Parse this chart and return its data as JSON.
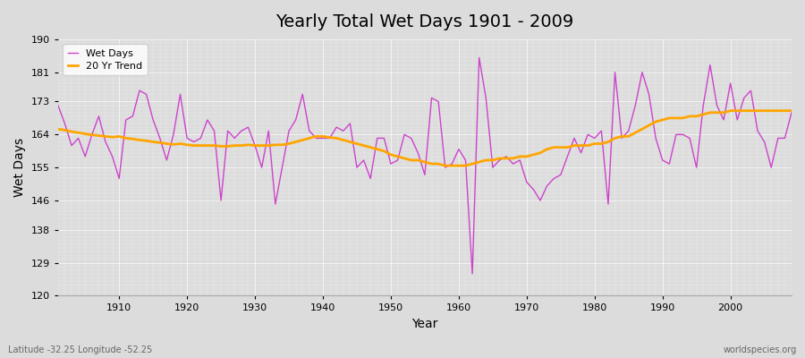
{
  "title": "Yearly Total Wet Days 1901 - 2009",
  "xlabel": "Year",
  "ylabel": "Wet Days",
  "subtitle": "Latitude -32.25 Longitude -52.25",
  "watermark": "worldspecies.org",
  "ylim": [
    120,
    190
  ],
  "xlim": [
    1901,
    2009
  ],
  "yticks": [
    120,
    129,
    138,
    146,
    155,
    164,
    173,
    181,
    190
  ],
  "xticks": [
    1910,
    1920,
    1930,
    1940,
    1950,
    1960,
    1970,
    1980,
    1990,
    2000
  ],
  "bg_color": "#dcdcdc",
  "plot_bg_color": "#dcdcdc",
  "wet_days_color": "#cc44cc",
  "trend_color": "#FFA500",
  "legend_wet": "Wet Days",
  "legend_trend": "20 Yr Trend",
  "years": [
    1901,
    1902,
    1903,
    1904,
    1905,
    1906,
    1907,
    1908,
    1909,
    1910,
    1911,
    1912,
    1913,
    1914,
    1915,
    1916,
    1917,
    1918,
    1919,
    1920,
    1921,
    1922,
    1923,
    1924,
    1925,
    1926,
    1927,
    1928,
    1929,
    1930,
    1931,
    1932,
    1933,
    1934,
    1935,
    1936,
    1937,
    1938,
    1939,
    1940,
    1941,
    1942,
    1943,
    1944,
    1945,
    1946,
    1947,
    1948,
    1949,
    1950,
    1951,
    1952,
    1953,
    1954,
    1955,
    1956,
    1957,
    1958,
    1959,
    1960,
    1961,
    1962,
    1963,
    1964,
    1965,
    1966,
    1967,
    1968,
    1969,
    1970,
    1971,
    1972,
    1973,
    1974,
    1975,
    1976,
    1977,
    1978,
    1979,
    1980,
    1981,
    1982,
    1983,
    1984,
    1985,
    1986,
    1987,
    1988,
    1989,
    1990,
    1991,
    1992,
    1993,
    1994,
    1995,
    1996,
    1997,
    1998,
    1999,
    2000,
    2001,
    2002,
    2003,
    2004,
    2005,
    2006,
    2007,
    2008,
    2009
  ],
  "wet_days": [
    172,
    167,
    161,
    163,
    158,
    164,
    169,
    162,
    158,
    152,
    168,
    169,
    176,
    175,
    168,
    163,
    157,
    164,
    175,
    163,
    162,
    163,
    168,
    165,
    146,
    165,
    163,
    165,
    166,
    161,
    155,
    165,
    145,
    155,
    165,
    168,
    175,
    165,
    163,
    163,
    163,
    166,
    165,
    167,
    155,
    157,
    152,
    163,
    163,
    156,
    157,
    164,
    163,
    159,
    153,
    174,
    173,
    155,
    156,
    160,
    157,
    126,
    185,
    174,
    155,
    157,
    158,
    156,
    157,
    151,
    149,
    146,
    150,
    152,
    153,
    158,
    163,
    159,
    164,
    163,
    165,
    145,
    181,
    163,
    165,
    172,
    181,
    175,
    163,
    157,
    156,
    164,
    164,
    163,
    155,
    172,
    183,
    172,
    168,
    178,
    168,
    174,
    176,
    165,
    162,
    155,
    163,
    163,
    170
  ],
  "trend": [
    165.5,
    165.2,
    164.8,
    164.5,
    164.2,
    163.9,
    163.7,
    163.5,
    163.3,
    163.5,
    163.0,
    162.8,
    162.5,
    162.3,
    162.0,
    161.8,
    161.5,
    161.3,
    161.5,
    161.2,
    161.0,
    161.0,
    161.0,
    161.0,
    160.8,
    160.8,
    161.0,
    161.0,
    161.2,
    161.0,
    161.0,
    161.0,
    161.2,
    161.2,
    161.5,
    162.0,
    162.5,
    163.0,
    163.5,
    163.5,
    163.2,
    163.0,
    162.5,
    162.0,
    161.5,
    161.0,
    160.5,
    160.0,
    159.5,
    158.5,
    158.0,
    157.5,
    157.0,
    157.0,
    156.5,
    156.0,
    156.0,
    155.5,
    155.5,
    155.5,
    155.5,
    156.0,
    156.5,
    157.0,
    157.0,
    157.5,
    157.5,
    157.5,
    158.0,
    158.0,
    158.5,
    159.0,
    160.0,
    160.5,
    160.5,
    160.5,
    161.0,
    161.0,
    161.0,
    161.5,
    161.5,
    162.0,
    163.0,
    163.5,
    163.5,
    164.5,
    165.5,
    166.5,
    167.5,
    168.0,
    168.5,
    168.5,
    168.5,
    169.0,
    169.0,
    169.5,
    170.0,
    170.0,
    170.0,
    170.5,
    170.5,
    170.5,
    170.5,
    170.5,
    170.5,
    170.5,
    170.5,
    170.5,
    170.5
  ]
}
